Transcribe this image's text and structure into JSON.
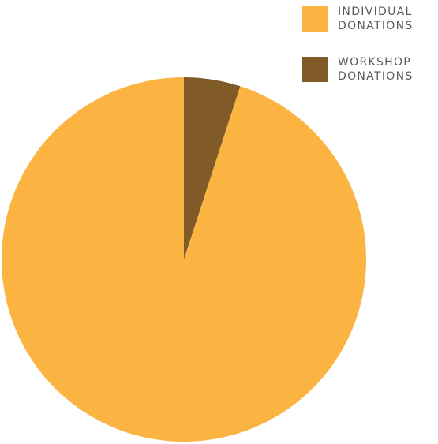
{
  "chart_data": {
    "type": "pie",
    "title": "",
    "legend_position": "top-right",
    "slices": [
      {
        "label": "INDIVIDUAL\nDONATIONS",
        "value": 95,
        "color": "#FBB442"
      },
      {
        "label": "WORKSHOP\nDONATIONS",
        "value": 5,
        "color": "#805B27"
      }
    ]
  }
}
